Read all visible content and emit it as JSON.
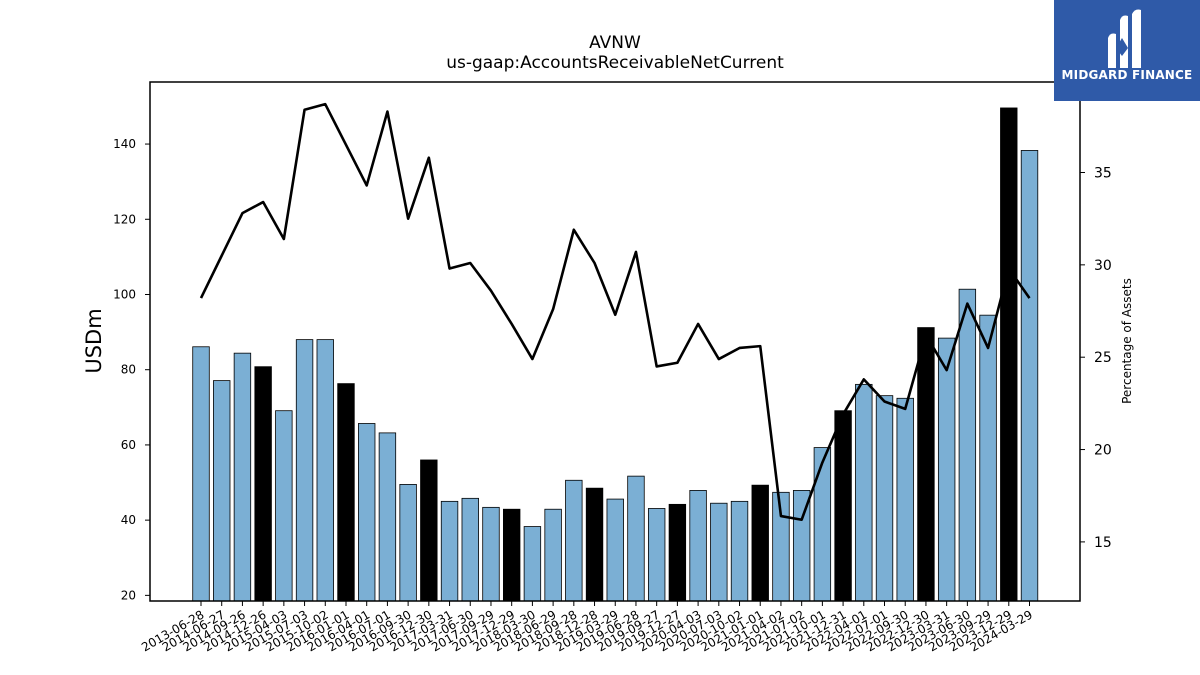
{
  "logo": {
    "text": "MIDGARD FINANCE",
    "icon": "midgard-logo-icon",
    "bg": "#2f5aa8"
  },
  "colors": {
    "bar": "#7bafd4",
    "bar_highlight": "#000000",
    "line": "#000000"
  },
  "chart_data": {
    "type": "bar",
    "title": "AVNW",
    "subtitle": "us-gaap:AccountsReceivableNetCurrent",
    "ylabel": "USDm",
    "y2label": "Percentage of Assets",
    "ylim": [
      18.5,
      156.5
    ],
    "yticks": [
      20,
      40,
      60,
      80,
      100,
      120,
      140
    ],
    "y2lim": [
      11.8,
      39.9
    ],
    "y2ticks": [
      15,
      20,
      25,
      30,
      35
    ],
    "categories": [
      "2013-06-28",
      "2014-06-27",
      "2014-09-26",
      "2014-12-26",
      "2015-04-03",
      "2015-07-03",
      "2015-10-02",
      "2016-01-01",
      "2016-04-01",
      "2016-07-01",
      "2016-09-30",
      "2016-12-30",
      "2017-03-31",
      "2017-06-30",
      "2017-09-29",
      "2017-12-29",
      "2018-03-30",
      "2018-06-29",
      "2018-09-28",
      "2018-12-28",
      "2019-03-29",
      "2019-06-28",
      "2019-09-27",
      "2019-12-27",
      "2020-04-03",
      "2020-07-03",
      "2020-10-02",
      "2021-01-01",
      "2021-04-02",
      "2021-07-02",
      "2021-10-01",
      "2021-12-31",
      "2022-04-01",
      "2022-07-01",
      "2022-09-30",
      "2022-12-30",
      "2023-03-31",
      "2023-06-30",
      "2023-09-29",
      "2023-12-29",
      "2024-03-29"
    ],
    "series": [
      {
        "kind": "bar",
        "axis": "left",
        "values": [
          86.1,
          77.1,
          84.4,
          80.8,
          69.1,
          88.0,
          88.0,
          76.3,
          65.7,
          63.2,
          49.5,
          56.0,
          45.0,
          45.8,
          43.4,
          42.9,
          38.3,
          42.9,
          50.6,
          48.5,
          45.6,
          51.7,
          43.1,
          44.2,
          47.9,
          44.5,
          45.0,
          49.3,
          47.4,
          47.9,
          59.3,
          69.1,
          76.1,
          73.1,
          72.4,
          91.2,
          88.4,
          101.4,
          94.5,
          149.6,
          138.3
        ],
        "highlight": [
          false,
          false,
          false,
          true,
          false,
          false,
          false,
          true,
          false,
          false,
          false,
          true,
          false,
          false,
          false,
          true,
          false,
          false,
          false,
          true,
          false,
          false,
          false,
          true,
          false,
          false,
          false,
          true,
          false,
          false,
          false,
          true,
          false,
          false,
          false,
          true,
          false,
          false,
          false,
          true,
          false
        ]
      },
      {
        "kind": "line",
        "axis": "right",
        "values": [
          28.2,
          30.5,
          32.8,
          33.4,
          31.4,
          38.4,
          38.7,
          36.5,
          34.3,
          38.3,
          32.5,
          35.8,
          29.8,
          30.1,
          28.6,
          26.8,
          24.9,
          27.6,
          31.9,
          30.1,
          27.3,
          30.7,
          24.5,
          24.7,
          26.8,
          24.9,
          25.5,
          25.6,
          16.4,
          16.2,
          19.3,
          21.9,
          23.8,
          22.6,
          22.2,
          26.2,
          24.3,
          27.9,
          25.5,
          29.8,
          28.2
        ]
      }
    ]
  }
}
